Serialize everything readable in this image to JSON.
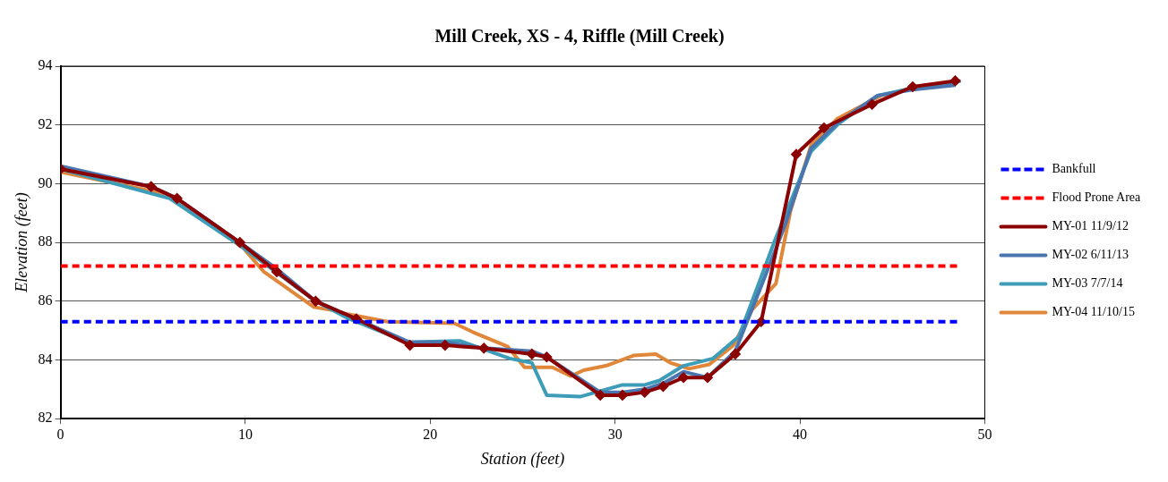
{
  "chart_data": {
    "type": "line",
    "title": "Mill Creek, XS - 4, Riffle (Mill Creek)",
    "xlabel": "Station (feet)",
    "ylabel": "Elevation (feet)",
    "xlim": [
      0,
      50
    ],
    "xticks": [
      0,
      10,
      20,
      30,
      40,
      50
    ],
    "ylim": [
      82,
      94
    ],
    "yticks": [
      82,
      84,
      86,
      88,
      90,
      92,
      94
    ],
    "grid": "y",
    "legend": "right",
    "series": [
      {
        "name": "Bankfull",
        "color": "#0000ff",
        "line_style": "dashed",
        "marker": "none",
        "x": [
          0,
          48.5
        ],
        "values": [
          85.3,
          85.3
        ]
      },
      {
        "name": "Flood Prone Area",
        "color": "#ff0000",
        "line_style": "dashed",
        "marker": "none",
        "x": [
          0,
          48.5
        ],
        "values": [
          87.2,
          87.2
        ]
      },
      {
        "name": "MY-01 11/9/12",
        "color": "#8b0000",
        "line_style": "solid",
        "marker": "diamond",
        "x": [
          0,
          4.9,
          6.3,
          9.7,
          11.7,
          13.8,
          16.0,
          18.9,
          20.8,
          22.9,
          25.5,
          26.3,
          29.2,
          30.4,
          31.6,
          32.6,
          33.7,
          35.0,
          36.5,
          37.9,
          39.8,
          41.3,
          43.9,
          46.1,
          48.4
        ],
        "values": [
          90.5,
          89.9,
          89.5,
          88.0,
          87.0,
          86.0,
          85.4,
          84.5,
          84.5,
          84.4,
          84.2,
          84.1,
          82.8,
          82.8,
          82.9,
          83.1,
          83.4,
          83.4,
          84.2,
          85.3,
          91.0,
          91.9,
          92.7,
          93.3,
          93.5
        ]
      },
      {
        "name": "MY-02 6/11/13",
        "color": "#4a76b0",
        "line_style": "solid",
        "marker": "none",
        "x": [
          0,
          4.9,
          6.3,
          9.7,
          11.7,
          13.8,
          16.0,
          18.9,
          20.8,
          22.9,
          25.5,
          26.3,
          29.2,
          30.4,
          31.6,
          32.6,
          33.7,
          35.0,
          36.5,
          37.9,
          39.2,
          40.6,
          42.1,
          44.2,
          46.1,
          48.4
        ],
        "values": [
          90.6,
          89.9,
          89.5,
          88.0,
          87.1,
          86.0,
          85.4,
          84.6,
          84.6,
          84.4,
          84.3,
          84.1,
          82.9,
          82.9,
          83.0,
          83.2,
          83.6,
          83.4,
          84.3,
          86.5,
          88.6,
          91.2,
          92.1,
          93.0,
          93.2,
          93.35
        ]
      },
      {
        "name": "MY-03 7/7/14",
        "color": "#3d9cb8",
        "line_style": "solid",
        "marker": "none",
        "x": [
          0,
          5.9,
          9.7,
          13.8,
          15.6,
          18.8,
          21.6,
          24.3,
          25.5,
          26.3,
          28.1,
          30.4,
          31.6,
          32.4,
          33.7,
          35.3,
          36.7,
          38.6,
          40.6,
          42.1,
          44.2,
          46.1,
          48.7
        ],
        "values": [
          90.5,
          89.5,
          87.9,
          86.0,
          85.4,
          84.6,
          84.65,
          84.05,
          83.9,
          82.8,
          82.75,
          83.15,
          83.15,
          83.3,
          83.8,
          84.05,
          84.8,
          88.0,
          91.1,
          92.05,
          93.0,
          93.25,
          93.5
        ]
      },
      {
        "name": "MY-04 11/10/15",
        "color": "#e0873a",
        "line_style": "solid",
        "marker": "none",
        "x": [
          0,
          5.7,
          6.2,
          9.9,
          11.0,
          13.7,
          14.7,
          15.6,
          17.7,
          21.3,
          22.3,
          24.2,
          25.1,
          26.6,
          27.6,
          28.3,
          29.5,
          31.0,
          32.2,
          33.0,
          34.0,
          35.1,
          36.4,
          37.4,
          38.7,
          39.5,
          40.6,
          42.0,
          44.4,
          46.1,
          48.5
        ],
        "values": [
          90.4,
          89.65,
          89.5,
          87.8,
          87.0,
          85.8,
          85.7,
          85.55,
          85.3,
          85.25,
          84.95,
          84.45,
          83.75,
          83.75,
          83.45,
          83.65,
          83.8,
          84.15,
          84.2,
          83.9,
          83.7,
          83.85,
          84.5,
          85.7,
          86.6,
          89.1,
          91.3,
          92.2,
          93.0,
          93.25,
          93.45
        ]
      }
    ]
  }
}
